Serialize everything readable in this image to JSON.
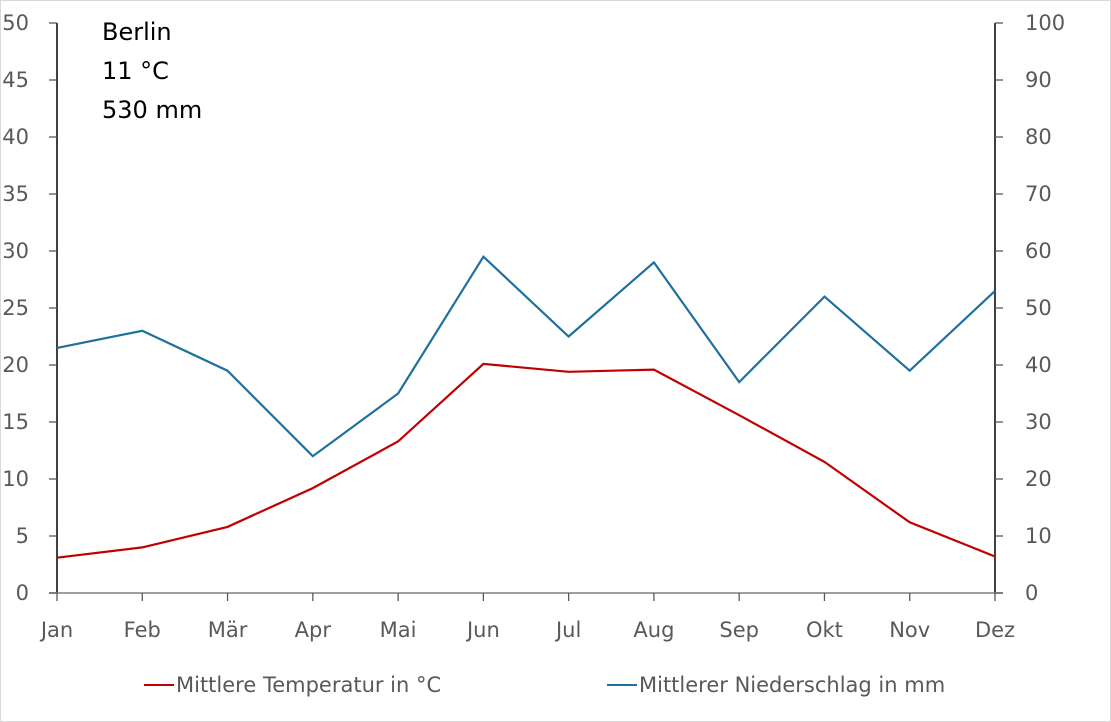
{
  "chart_data": {
    "type": "line",
    "title": "",
    "categories": [
      "Jan",
      "Feb",
      "Mär",
      "Apr",
      "Mai",
      "Jun",
      "Jul",
      "Aug",
      "Sep",
      "Okt",
      "Nov",
      "Dez"
    ],
    "annotation": {
      "city": "Berlin",
      "mean_temp": "11 °C",
      "total_precip": "530 mm"
    },
    "y_left": {
      "ylim": [
        0,
        50
      ],
      "ticks": [
        "0",
        "5",
        "10",
        "15",
        "20",
        "25",
        "30",
        "35",
        "40",
        "45",
        "50"
      ]
    },
    "y_right": {
      "ylim": [
        0,
        100
      ],
      "ticks": [
        "0",
        "10",
        "20",
        "30",
        "40",
        "50",
        "60",
        "70",
        "80",
        "90",
        "100"
      ]
    },
    "grid": false,
    "legend_position": "bottom",
    "series": [
      {
        "name": "Mittlere Temperatur in °C",
        "axis": "left",
        "color": "#c00000",
        "values": [
          3.1,
          4.0,
          5.8,
          9.2,
          13.3,
          20.1,
          19.4,
          19.6,
          15.6,
          11.5,
          6.2,
          3.2
        ]
      },
      {
        "name": "Mittlerer Niederschlag in mm",
        "axis": "right",
        "color": "#1f6f9f",
        "values": [
          43,
          46,
          39,
          24,
          35,
          59,
          45,
          58,
          37,
          52,
          39,
          53
        ]
      }
    ]
  }
}
